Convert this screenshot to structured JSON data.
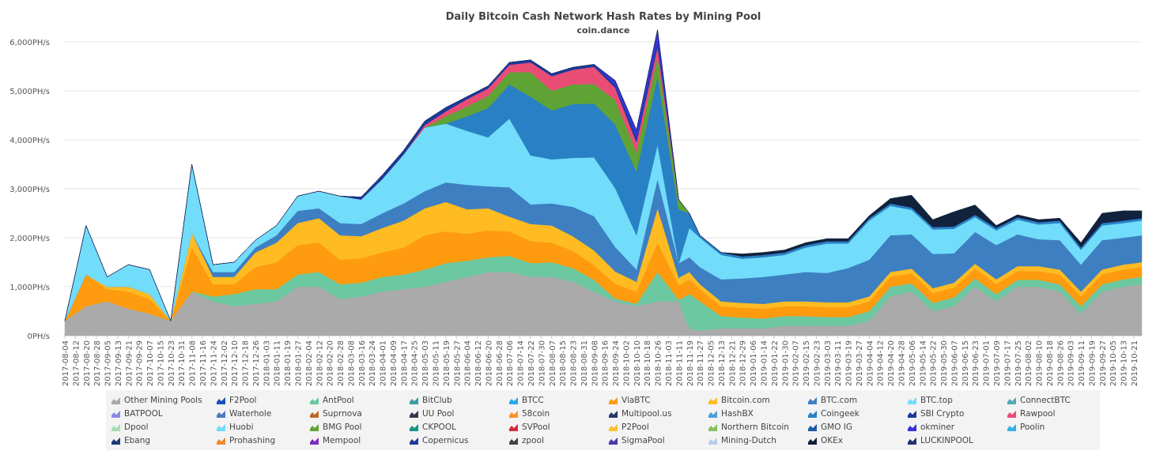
{
  "chart_data": {
    "type": "area",
    "title": "Daily Bitcoin Cash Network Hash Rates by Mining Pool",
    "subtitle": "coin.dance",
    "stacked": true,
    "y_unit": "PH/s",
    "ylim": [
      0,
      6000
    ],
    "y_ticks": [
      "0PH/s",
      "1,000PH/s",
      "2,000PH/s",
      "3,000PH/s",
      "4,000PH/s",
      "5,000PH/s",
      "6,000PH/s"
    ],
    "x_tick_labels": [
      "2017-08-04",
      "2017-08-12",
      "2017-08-20",
      "2017-08-28",
      "2017-09-05",
      "2017-09-13",
      "2017-09-21",
      "2017-09-29",
      "2017-10-07",
      "2017-10-15",
      "2017-10-23",
      "2017-10-31",
      "2017-11-08",
      "2017-11-16",
      "2017-11-24",
      "2017-12-02",
      "2017-12-10",
      "2017-12-18",
      "2017-12-26",
      "2018-01-03",
      "2018-01-11",
      "2018-01-19",
      "2018-01-27",
      "2018-02-04",
      "2018-02-12",
      "2018-02-20",
      "2018-02-28",
      "2018-03-08",
      "2018-03-16",
      "2018-03-24",
      "2018-04-01",
      "2018-04-09",
      "2018-04-17",
      "2018-04-25",
      "2018-05-03",
      "2018-05-11",
      "2018-05-19",
      "2018-05-27",
      "2018-06-04",
      "2018-06-12",
      "2018-06-20",
      "2018-06-28",
      "2018-07-06",
      "2018-07-14",
      "2018-07-22",
      "2018-07-30",
      "2018-08-07",
      "2018-08-15",
      "2018-08-23",
      "2018-08-31",
      "2018-09-08",
      "2018-09-16",
      "2018-09-24",
      "2018-10-02",
      "2018-10-10",
      "2018-10-18",
      "2018-10-26",
      "2018-11-03",
      "2018-11-11",
      "2018-11-19",
      "2018-11-27",
      "2018-12-05",
      "2018-12-13",
      "2018-12-21",
      "2018-12-29",
      "2019-01-06",
      "2019-01-14",
      "2019-01-22",
      "2019-01-30",
      "2019-02-07",
      "2019-02-15",
      "2019-02-23",
      "2019-03-03",
      "2019-03-11",
      "2019-03-19",
      "2019-03-27",
      "2019-04-04",
      "2019-04-12",
      "2019-04-20",
      "2019-04-28",
      "2019-05-06",
      "2019-05-14",
      "2019-05-22",
      "2019-05-30",
      "2019-06-07",
      "2019-06-15",
      "2019-06-23",
      "2019-07-01",
      "2019-07-09",
      "2019-07-17",
      "2019-07-25",
      "2019-08-02",
      "2019-08-10",
      "2019-08-18",
      "2019-08-26",
      "2019-09-03",
      "2019-09-11",
      "2019-09-19",
      "2019-09-27",
      "2019-10-05",
      "2019-10-13",
      "2019-10-21"
    ],
    "x_sample_dates": [
      "2017-08-04",
      "2017-08-20",
      "2017-09-05",
      "2017-09-21",
      "2017-10-07",
      "2017-10-23",
      "2017-11-08",
      "2017-11-24",
      "2017-12-10",
      "2017-12-26",
      "2018-01-11",
      "2018-01-27",
      "2018-02-12",
      "2018-02-28",
      "2018-03-16",
      "2018-04-01",
      "2018-04-17",
      "2018-05-03",
      "2018-05-19",
      "2018-06-04",
      "2018-06-20",
      "2018-07-06",
      "2018-07-22",
      "2018-08-07",
      "2018-08-23",
      "2018-09-08",
      "2018-09-24",
      "2018-10-10",
      "2018-10-26",
      "2018-11-11",
      "2018-11-19",
      "2018-11-27",
      "2018-12-13",
      "2018-12-29",
      "2019-01-14",
      "2019-01-30",
      "2019-02-15",
      "2019-03-03",
      "2019-03-19",
      "2019-04-04",
      "2019-04-20",
      "2019-05-06",
      "2019-05-22",
      "2019-06-07",
      "2019-06-23",
      "2019-07-09",
      "2019-07-25",
      "2019-08-10",
      "2019-08-26",
      "2019-09-11",
      "2019-09-27",
      "2019-10-13",
      "2019-10-27"
    ],
    "series": [
      {
        "name": "Other Mining Pools",
        "color": "#aaaaaa",
        "values": [
          300,
          600,
          700,
          550,
          450,
          300,
          900,
          700,
          600,
          650,
          700,
          1000,
          1000,
          750,
          800,
          900,
          950,
          1000,
          1100,
          1200,
          1300,
          1300,
          1200,
          1200,
          1100,
          900,
          700,
          600,
          700,
          700,
          150,
          100,
          150,
          150,
          150,
          200,
          200,
          200,
          200,
          300,
          800,
          900,
          500,
          600,
          1000,
          700,
          1000,
          1000,
          900,
          450,
          900,
          1000,
          1050,
          1000,
          1050,
          1100,
          1150
        ]
      },
      {
        "name": "AntPool",
        "color": "#6cc8a0",
        "values": [
          0,
          0,
          0,
          0,
          0,
          0,
          0,
          100,
          250,
          300,
          250,
          250,
          300,
          300,
          280,
          300,
          300,
          350,
          380,
          330,
          300,
          330,
          280,
          300,
          280,
          240,
          60,
          50,
          600,
          30,
          700,
          600,
          250,
          220,
          200,
          200,
          200,
          180,
          180,
          200,
          200,
          170,
          170,
          180,
          170,
          150,
          140,
          140,
          150,
          150,
          150,
          150,
          150
        ]
      },
      {
        "name": "ViaBTC",
        "color": "#ff9b0f",
        "values": [
          0,
          650,
          250,
          350,
          300,
          0,
          900,
          250,
          200,
          450,
          550,
          600,
          600,
          500,
          500,
          500,
          550,
          700,
          650,
          550,
          550,
          500,
          450,
          400,
          350,
          300,
          300,
          250,
          600,
          300,
          300,
          250,
          200,
          200,
          200,
          200,
          200,
          200,
          200,
          200,
          200,
          200,
          200,
          200,
          200,
          200,
          180,
          180,
          200,
          200,
          200,
          200,
          200
        ]
      },
      {
        "name": "Bitcoin.com",
        "color": "#ffbb22",
        "values": [
          0,
          0,
          50,
          100,
          100,
          0,
          300,
          150,
          150,
          300,
          400,
          450,
          500,
          500,
          450,
          500,
          550,
          550,
          600,
          500,
          450,
          300,
          350,
          350,
          300,
          300,
          250,
          200,
          700,
          150,
          150,
          100,
          100,
          100,
          100,
          100,
          100,
          100,
          100,
          100,
          100,
          100,
          100,
          100,
          100,
          100,
          100,
          100,
          100,
          100,
          100,
          100,
          100
        ]
      },
      {
        "name": "BTC.com",
        "color": "#3d7fc1",
        "values": [
          0,
          0,
          0,
          0,
          0,
          0,
          0,
          100,
          100,
          100,
          150,
          250,
          200,
          250,
          250,
          300,
          350,
          350,
          400,
          500,
          450,
          600,
          400,
          450,
          600,
          700,
          500,
          250,
          600,
          300,
          300,
          350,
          450,
          500,
          550,
          550,
          600,
          600,
          700,
          750,
          750,
          700,
          700,
          600,
          650,
          700,
          650,
          550,
          600,
          550,
          600,
          550,
          550
        ]
      },
      {
        "name": "BTC.top",
        "color": "#72dcfb",
        "values": [
          0,
          1000,
          200,
          450,
          500,
          0,
          1400,
          150,
          200,
          150,
          200,
          300,
          350,
          550,
          500,
          700,
          1000,
          1300,
          1200,
          1100,
          1000,
          1400,
          1000,
          900,
          1000,
          1200,
          1200,
          700,
          700,
          0,
          600,
          600,
          500,
          400,
          400,
          400,
          500,
          600,
          500,
          800,
          600,
          500,
          500,
          500,
          300,
          300,
          300,
          300,
          350,
          300,
          300,
          300,
          300
        ]
      },
      {
        "name": "Coingeek",
        "color": "#2980c4",
        "values": [
          0,
          0,
          0,
          0,
          0,
          0,
          0,
          0,
          0,
          0,
          0,
          0,
          0,
          0,
          0,
          0,
          0,
          0,
          0,
          300,
          600,
          700,
          1200,
          1000,
          1100,
          1100,
          1300,
          1300,
          1400,
          1100,
          300,
          50,
          50,
          50,
          50,
          50,
          50,
          50,
          50,
          50,
          50,
          50,
          50,
          50,
          50,
          50,
          50,
          50,
          50,
          50,
          50,
          50,
          50
        ]
      },
      {
        "name": "BMG Pool",
        "color": "#5fa335",
        "values": [
          0,
          0,
          0,
          0,
          0,
          0,
          0,
          0,
          0,
          0,
          0,
          0,
          0,
          0,
          0,
          0,
          0,
          0,
          150,
          200,
          250,
          250,
          500,
          400,
          400,
          400,
          500,
          400,
          400,
          200,
          0,
          0,
          0,
          0,
          0,
          0,
          0,
          0,
          0,
          0,
          0,
          0,
          0,
          0,
          0,
          0,
          0,
          0,
          0,
          0,
          0,
          0,
          0
        ]
      },
      {
        "name": "Rawpool",
        "color": "#e94d76",
        "values": [
          0,
          0,
          0,
          0,
          0,
          0,
          0,
          0,
          0,
          0,
          0,
          0,
          0,
          0,
          0,
          0,
          0,
          50,
          100,
          150,
          150,
          150,
          200,
          300,
          300,
          350,
          250,
          200,
          200,
          0,
          0,
          0,
          0,
          0,
          0,
          0,
          0,
          0,
          0,
          0,
          0,
          0,
          0,
          0,
          0,
          0,
          0,
          0,
          0,
          0,
          0,
          0,
          0
        ]
      },
      {
        "name": "SBI Crypto",
        "color": "#1a3a9c",
        "values": [
          0,
          0,
          0,
          0,
          0,
          0,
          0,
          0,
          0,
          0,
          0,
          0,
          0,
          0,
          50,
          80,
          80,
          80,
          80,
          50,
          50,
          50,
          50,
          50,
          50,
          50,
          50,
          100,
          100,
          0,
          0,
          0,
          0,
          0,
          0,
          0,
          0,
          0,
          0,
          0,
          0,
          0,
          0,
          0,
          0,
          0,
          0,
          0,
          0,
          0,
          0,
          0,
          0
        ]
      },
      {
        "name": "okminer",
        "color": "#3434d6",
        "values": [
          0,
          0,
          0,
          0,
          0,
          0,
          0,
          0,
          0,
          0,
          0,
          0,
          0,
          0,
          0,
          0,
          0,
          0,
          0,
          0,
          0,
          0,
          0,
          0,
          0,
          0,
          100,
          150,
          250,
          0,
          0,
          0,
          0,
          0,
          0,
          0,
          0,
          0,
          0,
          0,
          0,
          0,
          0,
          0,
          0,
          0,
          0,
          0,
          0,
          0,
          0,
          0,
          0
        ]
      },
      {
        "name": "OKEx",
        "color": "#10223c",
        "values": [
          0,
          0,
          0,
          0,
          0,
          0,
          0,
          0,
          0,
          0,
          0,
          0,
          0,
          0,
          0,
          0,
          0,
          0,
          0,
          0,
          0,
          0,
          0,
          0,
          0,
          0,
          0,
          0,
          0,
          0,
          0,
          0,
          0,
          50,
          50,
          50,
          50,
          50,
          50,
          50,
          100,
          250,
          150,
          300,
          200,
          50,
          50,
          50,
          50,
          100,
          200,
          200,
          150
        ]
      }
    ],
    "legend": {
      "placement": "bottom",
      "entries": [
        {
          "name": "Other Mining Pools",
          "color": "#aaaaaa"
        },
        {
          "name": "F2Pool",
          "color": "#1f4fbd"
        },
        {
          "name": "AntPool",
          "color": "#6cc8a0"
        },
        {
          "name": "BitClub",
          "color": "#3d9aa6"
        },
        {
          "name": "BTCC",
          "color": "#28a9f0"
        },
        {
          "name": "ViaBTC",
          "color": "#ff9b0f"
        },
        {
          "name": "Bitcoin.com",
          "color": "#ffbb22"
        },
        {
          "name": "BTC.com",
          "color": "#3d7fc1"
        },
        {
          "name": "BTC.top",
          "color": "#72dcfb"
        },
        {
          "name": "ConnectBTC",
          "color": "#56a8b8"
        },
        {
          "name": "BATPOOL",
          "color": "#8a8ae6"
        },
        {
          "name": "Waterhole",
          "color": "#4a78c0"
        },
        {
          "name": "Suprnova",
          "color": "#c0652a"
        },
        {
          "name": "UU Pool",
          "color": "#2e3a4a"
        },
        {
          "name": "58coin",
          "color": "#ff9322"
        },
        {
          "name": "Multipool.us",
          "color": "#27386a"
        },
        {
          "name": "HashBX",
          "color": "#4e9ed8"
        },
        {
          "name": "Coingeek",
          "color": "#2980c4"
        },
        {
          "name": "SBI Crypto",
          "color": "#1a3a9c"
        },
        {
          "name": "Rawpool",
          "color": "#e94d76"
        },
        {
          "name": "Dpool",
          "color": "#a8dcb4"
        },
        {
          "name": "Huobi",
          "color": "#72dcfb"
        },
        {
          "name": "BMG Pool",
          "color": "#5fa335"
        },
        {
          "name": "CKPOOL",
          "color": "#169486"
        },
        {
          "name": "SVPool",
          "color": "#d42a3c"
        },
        {
          "name": "P2Pool",
          "color": "#ffc02a"
        },
        {
          "name": "Northern Bitcoin",
          "color": "#86c061"
        },
        {
          "name": "GMO IG",
          "color": "#1f5aa6"
        },
        {
          "name": "okminer",
          "color": "#3434d6"
        },
        {
          "name": "Poolin",
          "color": "#3aaee6"
        },
        {
          "name": "Ebang",
          "color": "#203a78"
        },
        {
          "name": "Prohashing",
          "color": "#ee8a2c"
        },
        {
          "name": "Mempool",
          "color": "#7b2fbe"
        },
        {
          "name": "Copernicus",
          "color": "#1d3c9a"
        },
        {
          "name": "zpool",
          "color": "#444444"
        },
        {
          "name": "SigmaPool",
          "color": "#4a3aa8"
        },
        {
          "name": "Mining-Dutch",
          "color": "#b9cdf0"
        },
        {
          "name": "OKEx",
          "color": "#10223c"
        },
        {
          "name": "LUCKINPOOL",
          "color": "#27336e"
        }
      ]
    },
    "grid": true
  }
}
